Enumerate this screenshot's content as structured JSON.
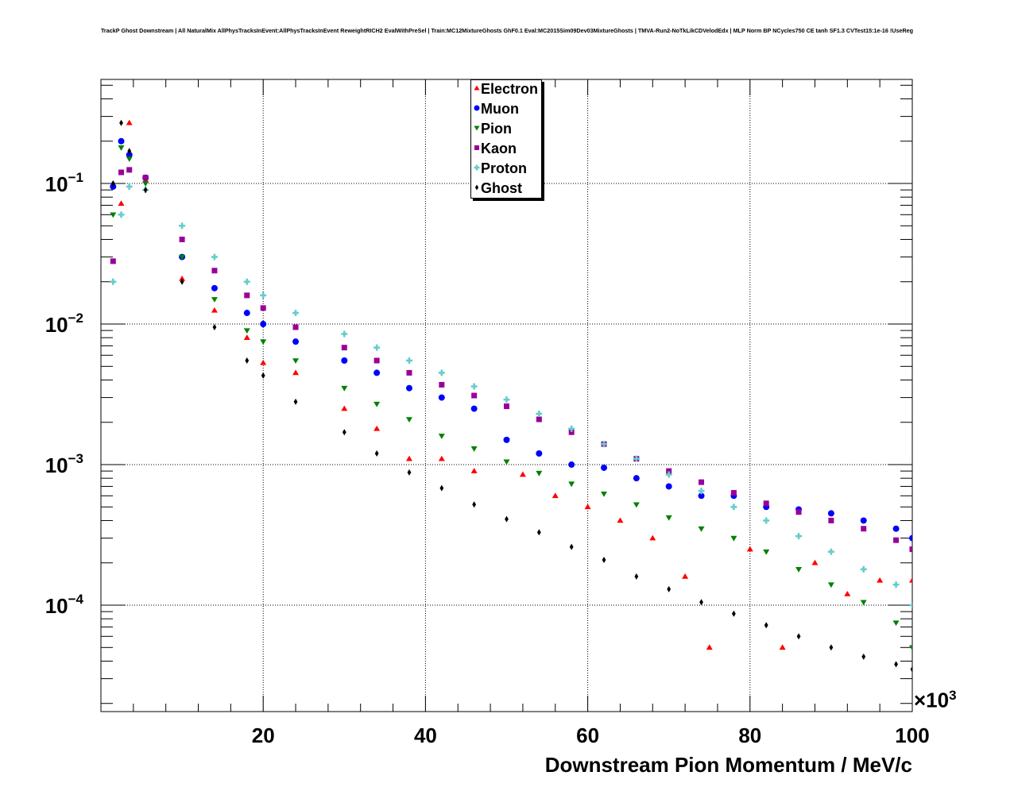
{
  "title": "TrackP Ghost Downstream | All NaturalMix AllPhysTracksInEvent:AllPhysTracksInEvent ReweightRICH2 EvalWithPreSel | Train:MC12MixtureGhosts GhF0.1 Eval:MC2015Sim09Dev03MixtureGhosts | TMVA-Run2-NoTkLikCDVelodEdx | MLP Norm BP NCycles750 CE tanh SF1.3 CVTest15:1e-16 !UseReg",
  "chart_data": {
    "type": "scatter",
    "title": "TrackP Ghost Downstream | All NaturalMix AllPhysTracksInEvent:AllPhysTracksInEvent ReweightRICH2 EvalWithPreSel | Train:MC12MixtureGhosts GhF0.1 Eval:MC2015Sim09Dev03MixtureGhosts | TMVA-Run2-NoTkLikCDVelodEdx | MLP Norm BP NCycles750 CE tanh SF1.3 CVTest15:1e-16 !UseReg",
    "xlabel": "Downstream Pion Momentum / MeV/c",
    "x_multiplier": "×10",
    "x_multiplier_exp": "3",
    "ylabel": "",
    "xlim": [
      0,
      100000
    ],
    "ylim": [
      1.75e-05,
      0.55
    ],
    "yscale": "log",
    "grid": true,
    "legend_position": "top-center",
    "x_tick_labels": [
      "20",
      "40",
      "60",
      "80",
      "100"
    ],
    "y_tick_labels": [
      {
        "base": "10",
        "exp": "−4"
      },
      {
        "base": "10",
        "exp": "−3"
      },
      {
        "base": "10",
        "exp": "−2"
      },
      {
        "base": "10",
        "exp": "−1"
      }
    ],
    "series": [
      {
        "name": "Electron",
        "color": "#ff0000",
        "marker": "triangle-up",
        "points": [
          [
            2500,
            0.072
          ],
          [
            3500,
            0.27
          ],
          [
            5500,
            0.105
          ],
          [
            10000,
            0.021
          ],
          [
            14000,
            0.0125
          ],
          [
            18000,
            0.008
          ],
          [
            20000,
            0.0053
          ],
          [
            24000,
            0.0045
          ],
          [
            30000,
            0.0025
          ],
          [
            34000,
            0.0018
          ],
          [
            38000,
            0.0011
          ],
          [
            42000,
            0.0011
          ],
          [
            46000,
            0.0009
          ],
          [
            52000,
            0.00085
          ],
          [
            56000,
            0.0006
          ],
          [
            60000,
            0.0005
          ],
          [
            64000,
            0.0004
          ],
          [
            68000,
            0.0003
          ],
          [
            72000,
            0.00016
          ],
          [
            75000,
            5e-05
          ],
          [
            80000,
            0.00025
          ],
          [
            84000,
            5e-05
          ],
          [
            88000,
            0.0002
          ],
          [
            92000,
            0.00012
          ],
          [
            96000,
            0.00015
          ],
          [
            100000,
            0.00015
          ]
        ]
      },
      {
        "name": "Muon",
        "color": "#0000ff",
        "marker": "circle",
        "points": [
          [
            1500,
            0.095
          ],
          [
            2500,
            0.2
          ],
          [
            3500,
            0.16
          ],
          [
            5500,
            0.11
          ],
          [
            10000,
            0.03
          ],
          [
            14000,
            0.018
          ],
          [
            18000,
            0.012
          ],
          [
            20000,
            0.01
          ],
          [
            24000,
            0.0075
          ],
          [
            30000,
            0.0055
          ],
          [
            34000,
            0.0045
          ],
          [
            38000,
            0.0035
          ],
          [
            42000,
            0.003
          ],
          [
            46000,
            0.0025
          ],
          [
            50000,
            0.0015
          ],
          [
            54000,
            0.0012
          ],
          [
            58000,
            0.001
          ],
          [
            62000,
            0.00095
          ],
          [
            66000,
            0.0008
          ],
          [
            70000,
            0.0007
          ],
          [
            74000,
            0.0006
          ],
          [
            78000,
            0.0006
          ],
          [
            82000,
            0.0005
          ],
          [
            86000,
            0.00048
          ],
          [
            90000,
            0.00045
          ],
          [
            94000,
            0.0004
          ],
          [
            98000,
            0.00035
          ],
          [
            100000,
            0.0003
          ]
        ]
      },
      {
        "name": "Pion",
        "color": "#008000",
        "marker": "triangle-down",
        "points": [
          [
            1500,
            0.06
          ],
          [
            2500,
            0.18
          ],
          [
            3500,
            0.15
          ],
          [
            5500,
            0.1
          ],
          [
            10000,
            0.03
          ],
          [
            14000,
            0.015
          ],
          [
            18000,
            0.009
          ],
          [
            20000,
            0.0075
          ],
          [
            24000,
            0.0055
          ],
          [
            30000,
            0.0035
          ],
          [
            34000,
            0.0027
          ],
          [
            38000,
            0.0021
          ],
          [
            42000,
            0.0016
          ],
          [
            46000,
            0.0013
          ],
          [
            50000,
            0.00105
          ],
          [
            54000,
            0.00087
          ],
          [
            58000,
            0.00073
          ],
          [
            62000,
            0.00062
          ],
          [
            66000,
            0.00052
          ],
          [
            70000,
            0.00042
          ],
          [
            74000,
            0.00035
          ],
          [
            78000,
            0.0003
          ],
          [
            82000,
            0.00024
          ],
          [
            86000,
            0.00018
          ],
          [
            90000,
            0.00014
          ],
          [
            94000,
            0.000105
          ],
          [
            98000,
            7.5e-05
          ],
          [
            100000,
            5e-05
          ]
        ]
      },
      {
        "name": "Kaon",
        "color": "#990099",
        "marker": "square",
        "points": [
          [
            1500,
            0.028
          ],
          [
            2500,
            0.12
          ],
          [
            3500,
            0.125
          ],
          [
            5500,
            0.11
          ],
          [
            10000,
            0.04
          ],
          [
            14000,
            0.024
          ],
          [
            18000,
            0.016
          ],
          [
            20000,
            0.013
          ],
          [
            24000,
            0.0095
          ],
          [
            30000,
            0.0068
          ],
          [
            34000,
            0.0055
          ],
          [
            38000,
            0.0045
          ],
          [
            42000,
            0.0037
          ],
          [
            46000,
            0.0031
          ],
          [
            50000,
            0.0026
          ],
          [
            54000,
            0.0021
          ],
          [
            58000,
            0.0017
          ],
          [
            62000,
            0.0014
          ],
          [
            66000,
            0.0011
          ],
          [
            70000,
            0.0009
          ],
          [
            74000,
            0.00075
          ],
          [
            78000,
            0.00063
          ],
          [
            82000,
            0.00053
          ],
          [
            86000,
            0.00046
          ],
          [
            90000,
            0.0004
          ],
          [
            94000,
            0.00035
          ],
          [
            98000,
            0.00029
          ],
          [
            100000,
            0.00025
          ]
        ]
      },
      {
        "name": "Proton",
        "color": "#66cccc",
        "marker": "cross",
        "points": [
          [
            1500,
            0.02
          ],
          [
            2500,
            0.06
          ],
          [
            3500,
            0.095
          ],
          [
            5500,
            0.09
          ],
          [
            10000,
            0.05
          ],
          [
            14000,
            0.03
          ],
          [
            18000,
            0.02
          ],
          [
            20000,
            0.016
          ],
          [
            24000,
            0.012
          ],
          [
            30000,
            0.0085
          ],
          [
            34000,
            0.0068
          ],
          [
            38000,
            0.0055
          ],
          [
            42000,
            0.0045
          ],
          [
            46000,
            0.0036
          ],
          [
            50000,
            0.0029
          ],
          [
            54000,
            0.0023
          ],
          [
            58000,
            0.0018
          ],
          [
            62000,
            0.0014
          ],
          [
            66000,
            0.0011
          ],
          [
            70000,
            0.00085
          ],
          [
            74000,
            0.00065
          ],
          [
            78000,
            0.0005
          ],
          [
            82000,
            0.0004
          ],
          [
            86000,
            0.00031
          ],
          [
            90000,
            0.00024
          ],
          [
            94000,
            0.00018
          ],
          [
            98000,
            0.00014
          ],
          [
            100000,
            0.0001
          ]
        ]
      },
      {
        "name": "Ghost",
        "color": "#000000",
        "marker": "diamond",
        "points": [
          [
            1500,
            0.1
          ],
          [
            2500,
            0.27
          ],
          [
            3500,
            0.17
          ],
          [
            5500,
            0.09
          ],
          [
            10000,
            0.02
          ],
          [
            14000,
            0.0095
          ],
          [
            18000,
            0.0055
          ],
          [
            20000,
            0.0043
          ],
          [
            24000,
            0.0028
          ],
          [
            30000,
            0.0017
          ],
          [
            34000,
            0.0012
          ],
          [
            38000,
            0.00088
          ],
          [
            42000,
            0.00068
          ],
          [
            46000,
            0.00052
          ],
          [
            50000,
            0.00041
          ],
          [
            54000,
            0.00033
          ],
          [
            58000,
            0.00026
          ],
          [
            62000,
            0.00021
          ],
          [
            66000,
            0.00016
          ],
          [
            70000,
            0.00013
          ],
          [
            74000,
            0.000105
          ],
          [
            78000,
            8.7e-05
          ],
          [
            82000,
            7.2e-05
          ],
          [
            86000,
            6e-05
          ],
          [
            90000,
            5e-05
          ],
          [
            94000,
            4.3e-05
          ],
          [
            98000,
            3.8e-05
          ],
          [
            100000,
            3.5e-05
          ]
        ]
      }
    ]
  }
}
